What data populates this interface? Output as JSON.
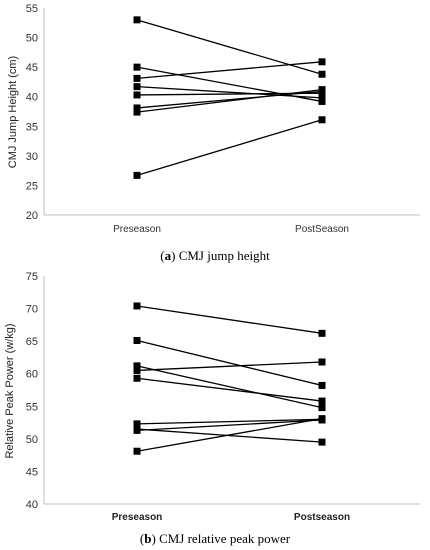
{
  "chart_data": [
    {
      "type": "line",
      "caption_letter": "a",
      "caption_text": "CMJ jump height",
      "ylabel": "CMJ Jump Height (cm)",
      "categories": [
        "Preseason",
        "PostSeason"
      ],
      "ylim": [
        20,
        55
      ],
      "yticks": [
        "20",
        "25",
        "30",
        "35",
        "40",
        "45",
        "50",
        "55"
      ],
      "grid": false,
      "series": [
        {
          "values": [
            53.0,
            43.8
          ]
        },
        {
          "values": [
            45.0,
            39.2
          ]
        },
        {
          "values": [
            43.1,
            45.9
          ]
        },
        {
          "values": [
            41.7,
            39.8
          ]
        },
        {
          "values": [
            40.3,
            40.6
          ]
        },
        {
          "values": [
            38.1,
            40.9
          ]
        },
        {
          "values": [
            37.4,
            41.2
          ]
        },
        {
          "values": [
            26.7,
            36.1
          ]
        }
      ]
    },
    {
      "type": "line",
      "caption_letter": "b",
      "caption_text": "CMJ relative peak power",
      "ylabel": "Relative Peak Power (w/kg)",
      "categories": [
        "Preseason",
        "Postseason"
      ],
      "ylim": [
        40,
        75
      ],
      "yticks": [
        "40",
        "45",
        "50",
        "55",
        "60",
        "65",
        "70",
        "75"
      ],
      "grid": false,
      "series": [
        {
          "values": [
            70.4,
            66.2
          ]
        },
        {
          "values": [
            65.1,
            58.2
          ]
        },
        {
          "values": [
            61.2,
            54.8
          ]
        },
        {
          "values": [
            60.5,
            61.8
          ]
        },
        {
          "values": [
            59.3,
            55.8
          ]
        },
        {
          "values": [
            52.3,
            53.0
          ]
        },
        {
          "values": [
            51.5,
            49.5
          ]
        },
        {
          "values": [
            51.3,
            52.9
          ]
        },
        {
          "values": [
            48.1,
            53.1
          ]
        }
      ]
    }
  ]
}
